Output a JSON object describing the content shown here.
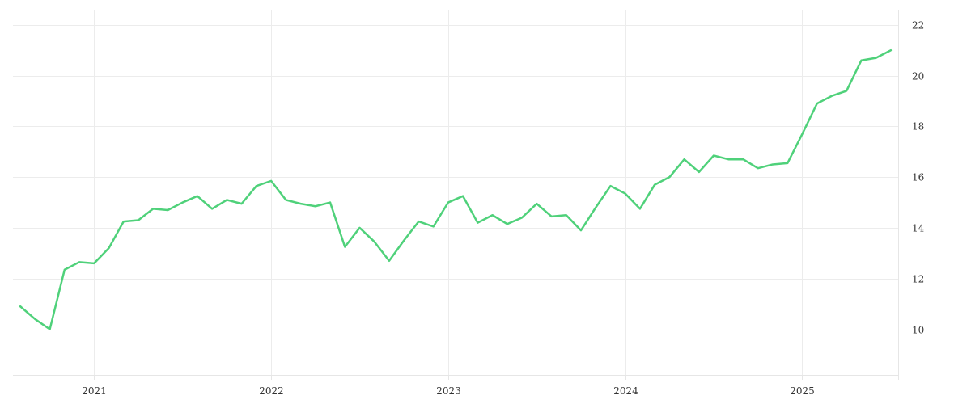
{
  "chart_data": {
    "type": "line",
    "title": "",
    "xlabel": "",
    "ylabel": "",
    "x_axis": {
      "start": "2020-08",
      "end": "2025-07",
      "tick_labels": [
        "2021",
        "2022",
        "2023",
        "2024",
        "2025"
      ]
    },
    "y_axis": {
      "position": "right",
      "ylim": [
        8.2,
        22.6
      ],
      "ticks": [
        10,
        12,
        14,
        16,
        18,
        20,
        22
      ],
      "tick_labels": [
        "10",
        "12",
        "14",
        "16",
        "18",
        "20",
        "22"
      ]
    },
    "grid": true,
    "legend": false,
    "series": [
      {
        "color": "#4fd17a",
        "x": [
          "2020-08",
          "2020-09",
          "2020-10",
          "2020-11",
          "2020-12",
          "2021-01",
          "2021-02",
          "2021-03",
          "2021-04",
          "2021-05",
          "2021-06",
          "2021-07",
          "2021-08",
          "2021-09",
          "2021-10",
          "2021-11",
          "2021-12",
          "2022-01",
          "2022-02",
          "2022-03",
          "2022-04",
          "2022-05",
          "2022-06",
          "2022-07",
          "2022-08",
          "2022-09",
          "2022-10",
          "2022-11",
          "2022-12",
          "2023-01",
          "2023-02",
          "2023-03",
          "2023-04",
          "2023-05",
          "2023-06",
          "2023-07",
          "2023-08",
          "2023-09",
          "2023-10",
          "2023-11",
          "2023-12",
          "2024-01",
          "2024-02",
          "2024-03",
          "2024-04",
          "2024-05",
          "2024-06",
          "2024-07",
          "2024-08",
          "2024-09",
          "2024-10",
          "2024-11",
          "2024-12",
          "2025-01",
          "2025-02",
          "2025-03",
          "2025-04",
          "2025-05",
          "2025-06",
          "2025-07"
        ],
        "values": [
          10.9,
          10.4,
          10.0,
          12.35,
          12.65,
          12.6,
          13.2,
          14.25,
          14.3,
          14.75,
          14.7,
          15.0,
          15.25,
          14.75,
          15.1,
          14.95,
          15.65,
          15.85,
          15.1,
          14.95,
          14.85,
          15.0,
          13.25,
          14.0,
          13.45,
          12.7,
          13.5,
          14.25,
          14.05,
          15.0,
          15.25,
          14.2,
          14.5,
          14.15,
          14.4,
          14.95,
          14.45,
          14.5,
          13.9,
          14.8,
          15.65,
          15.35,
          14.75,
          15.7,
          16.0,
          16.7,
          16.2,
          16.85,
          16.7,
          16.7,
          16.35,
          16.5,
          16.55,
          17.7,
          18.9,
          19.2,
          19.4,
          20.6,
          20.7,
          21.0
        ]
      }
    ]
  }
}
